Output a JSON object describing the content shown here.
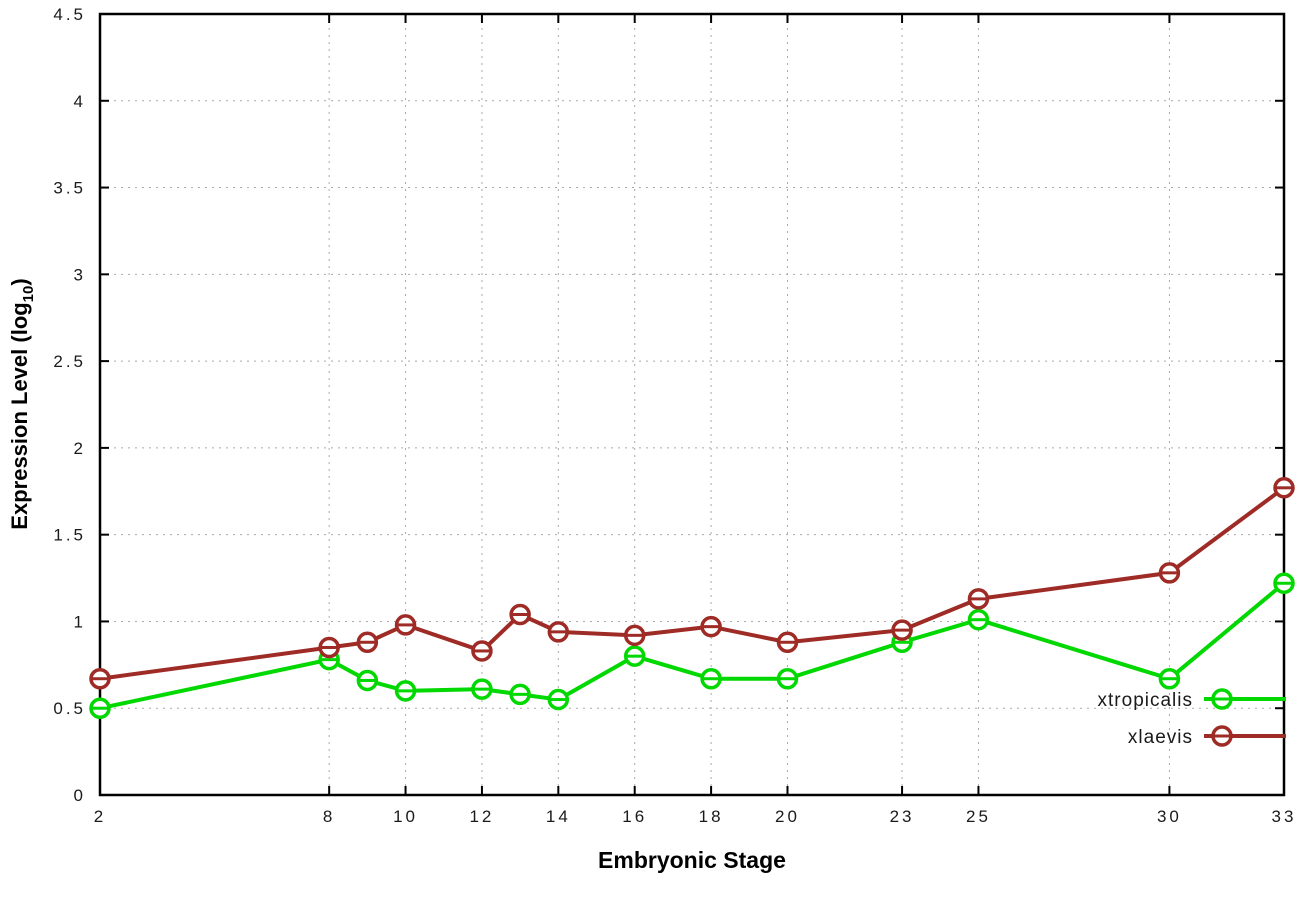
{
  "chart_data": {
    "type": "line",
    "x": [
      2,
      8,
      9,
      10,
      12,
      13,
      14,
      16,
      18,
      20,
      23,
      25,
      30,
      33
    ],
    "series": [
      {
        "name": "xtropicalis",
        "color": "#00d800",
        "values": [
          0.5,
          0.78,
          0.66,
          0.6,
          0.61,
          0.58,
          0.55,
          0.8,
          0.67,
          0.67,
          0.88,
          1.01,
          0.67,
          1.22
        ]
      },
      {
        "name": "xlaevis",
        "color": "#9e2b25",
        "values": [
          0.67,
          0.85,
          0.88,
          0.98,
          0.83,
          1.04,
          0.94,
          0.92,
          0.97,
          0.88,
          0.95,
          1.13,
          1.28,
          1.77
        ]
      }
    ],
    "title": "",
    "xlabel": "Embryonic Stage",
    "ylabel_parts": {
      "main": "Expression Level (log",
      "sub": "10",
      "end": ")"
    },
    "xlim": [
      2,
      33
    ],
    "ylim": [
      0,
      4.5
    ],
    "xticks": [
      2,
      8,
      10,
      12,
      14,
      16,
      18,
      20,
      23,
      25,
      30,
      33
    ],
    "xtick_labels": [
      "2",
      "8",
      "10",
      "12",
      "14",
      "16",
      "18",
      "20",
      "23",
      "25",
      "30",
      "33"
    ],
    "yticks": [
      0,
      0.5,
      1,
      1.5,
      2,
      2.5,
      3,
      3.5,
      4,
      4.5
    ],
    "ytick_labels": [
      "0",
      "0.5",
      "1",
      "1.5",
      "2",
      "2.5",
      "3",
      "3.5",
      "4",
      "4.5"
    ],
    "grid": true,
    "legend_position": "inside-bottom-right",
    "marker": "open-circle-with-errorbar",
    "background_color": "#ffffff"
  }
}
